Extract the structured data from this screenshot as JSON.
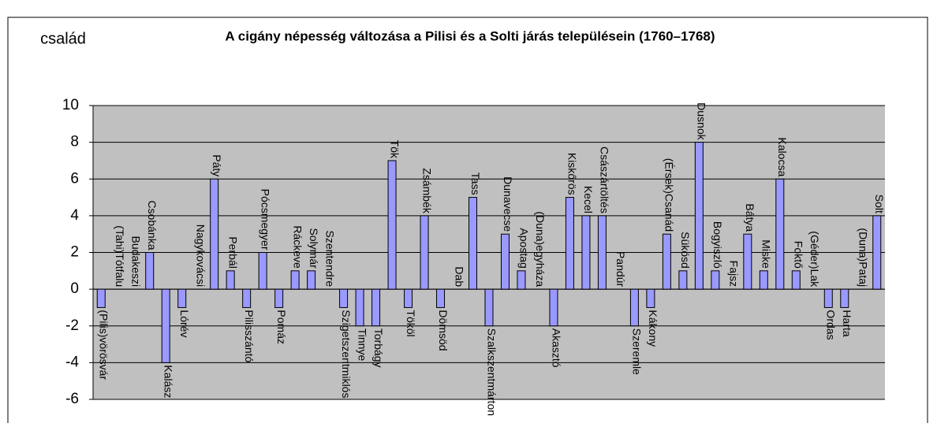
{
  "chart_data": {
    "type": "bar",
    "title": "A cigány népesség változása a Pilisi és a Solti járás településein (1760–1768)",
    "y_label": "család",
    "categories": [
      "(Pilis)vörösvár",
      "(Tahi)Tótfalu",
      "Budakeszi",
      "Csobánka",
      "Kalász",
      "Lórév",
      "Nagykovácsi",
      "Páty",
      "Perbál",
      "Pilisszántó",
      "Pócsmegyer",
      "Pomáz",
      "Ráckeve",
      "Solymár",
      "Szentendre",
      "Szigetszentmiklós",
      "Tinnye",
      "Torbágy",
      "Tök",
      "Tököl",
      "Zsámbék",
      "Dömsöd",
      "Dab",
      "Tass",
      "Szalkszentmárton",
      "Dunavecse",
      "Apostag",
      "(Duna)egyháza",
      "Akasztó",
      "Kiskőrös",
      "Kecel",
      "Császártöltés",
      "Pandúr",
      "Szeremle",
      "Kákony",
      "(Érsek)Csanád",
      "Sükösd",
      "Dusnok",
      "Bogyiszló",
      "Fajsz",
      "Bátya",
      "Miske",
      "Kalocsa",
      "Foktő",
      "(Géder)Lak",
      "Ordas",
      "Harta",
      "(Duna)Pataj",
      "Solt"
    ],
    "values": [
      -1,
      0,
      0,
      2,
      -4,
      -1,
      0,
      6,
      1,
      -1,
      2,
      -1,
      1,
      1,
      0,
      -1,
      -2,
      -2,
      7,
      -1,
      4,
      -1,
      0,
      5,
      -2,
      3,
      1,
      0,
      -2,
      5,
      4,
      4,
      0,
      -2,
      -1,
      3,
      1,
      8,
      1,
      0,
      3,
      1,
      6,
      1,
      0,
      -1,
      -1,
      0,
      4
    ],
    "color": "#9999ff",
    "ylim": [
      -6,
      10
    ],
    "yticks": [
      -6,
      -4,
      -2,
      0,
      2,
      4,
      6,
      8,
      10
    ],
    "grid": true
  }
}
